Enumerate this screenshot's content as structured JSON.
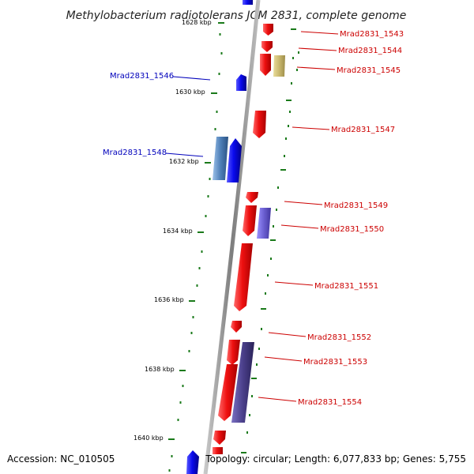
{
  "title": "Methylobacterium radiotolerans JCM 2831, complete genome",
  "footer": {
    "accession": "Accession: NC_010505",
    "summary": "Topology: circular; Length: 6,077,833 bp; Genes: 5,755"
  },
  "colors": {
    "plus_strand_gene": "#e00000",
    "minus_strand_gene": "#0000ee",
    "plus_label": "#cc0000",
    "minus_label": "#0000bb",
    "axis": "#8a8a8a",
    "ticks": "#1a7a1a",
    "trna": "#c9b86e",
    "rrna_or_feature_purple": "#6b5fd1",
    "dark_purple": "#4a3f8a",
    "steel_blue": "#4f80b8"
  },
  "scale": {
    "unit": "kbp",
    "ticks": [
      {
        "label": "1628 kbp",
        "kbp": 1628
      },
      {
        "label": "1630 kbp",
        "kbp": 1630
      },
      {
        "label": "1632 kbp",
        "kbp": 1632
      },
      {
        "label": "1634 kbp",
        "kbp": 1634
      },
      {
        "label": "1636 kbp",
        "kbp": 1636
      },
      {
        "label": "1638 kbp",
        "kbp": 1638
      },
      {
        "label": "1640 kbp",
        "kbp": 1640
      }
    ]
  },
  "genes": [
    {
      "id": "Mrad2831_1543",
      "label": "Mrad2831_1543",
      "strand": "+",
      "start_kbp": 1628.2,
      "end_kbp": 1628.5
    },
    {
      "id": "Mrad2831_1544",
      "label": "Mrad2831_1544",
      "strand": "+",
      "start_kbp": 1628.75,
      "end_kbp": 1629.0
    },
    {
      "id": "Mrad2831_1545",
      "label": "Mrad2831_1545",
      "strand": "+",
      "start_kbp": 1629.1,
      "end_kbp": 1629.6
    },
    {
      "id": "Mrad2831_1546",
      "label": "Mrad2831_1546",
      "strand": "-",
      "start_kbp": 1629.7,
      "end_kbp": 1630.0
    },
    {
      "id": "Mrad2831_1547",
      "label": "Mrad2831_1547",
      "strand": "+",
      "start_kbp": 1630.5,
      "end_kbp": 1631.3
    },
    {
      "id": "Mrad2831_1548",
      "label": "Mrad2831_1548",
      "strand": "-",
      "start_kbp": 1631.6,
      "end_kbp": 1632.9
    },
    {
      "id": "Mrad2831_1549",
      "label": "Mrad2831_1549",
      "strand": "+",
      "start_kbp": 1633.0,
      "end_kbp": 1633.3
    },
    {
      "id": "Mrad2831_1550",
      "label": "Mrad2831_1550",
      "strand": "+",
      "start_kbp": 1633.4,
      "end_kbp": 1634.3
    },
    {
      "id": "Mrad2831_1551",
      "label": "Mrad2831_1551",
      "strand": "+",
      "start_kbp": 1634.4,
      "end_kbp": 1636.4
    },
    {
      "id": "Mrad2831_1552",
      "label": "Mrad2831_1552",
      "strand": "+",
      "start_kbp": 1636.7,
      "end_kbp": 1637.0
    },
    {
      "id": "Mrad2831_1553",
      "label": "Mrad2831_1553",
      "strand": "+",
      "start_kbp": 1637.3,
      "end_kbp": 1638.0
    },
    {
      "id": "Mrad2831_1554",
      "label": "Mrad2831_1554",
      "strand": "+",
      "start_kbp": 1638.0,
      "end_kbp": 1639.6
    }
  ]
}
